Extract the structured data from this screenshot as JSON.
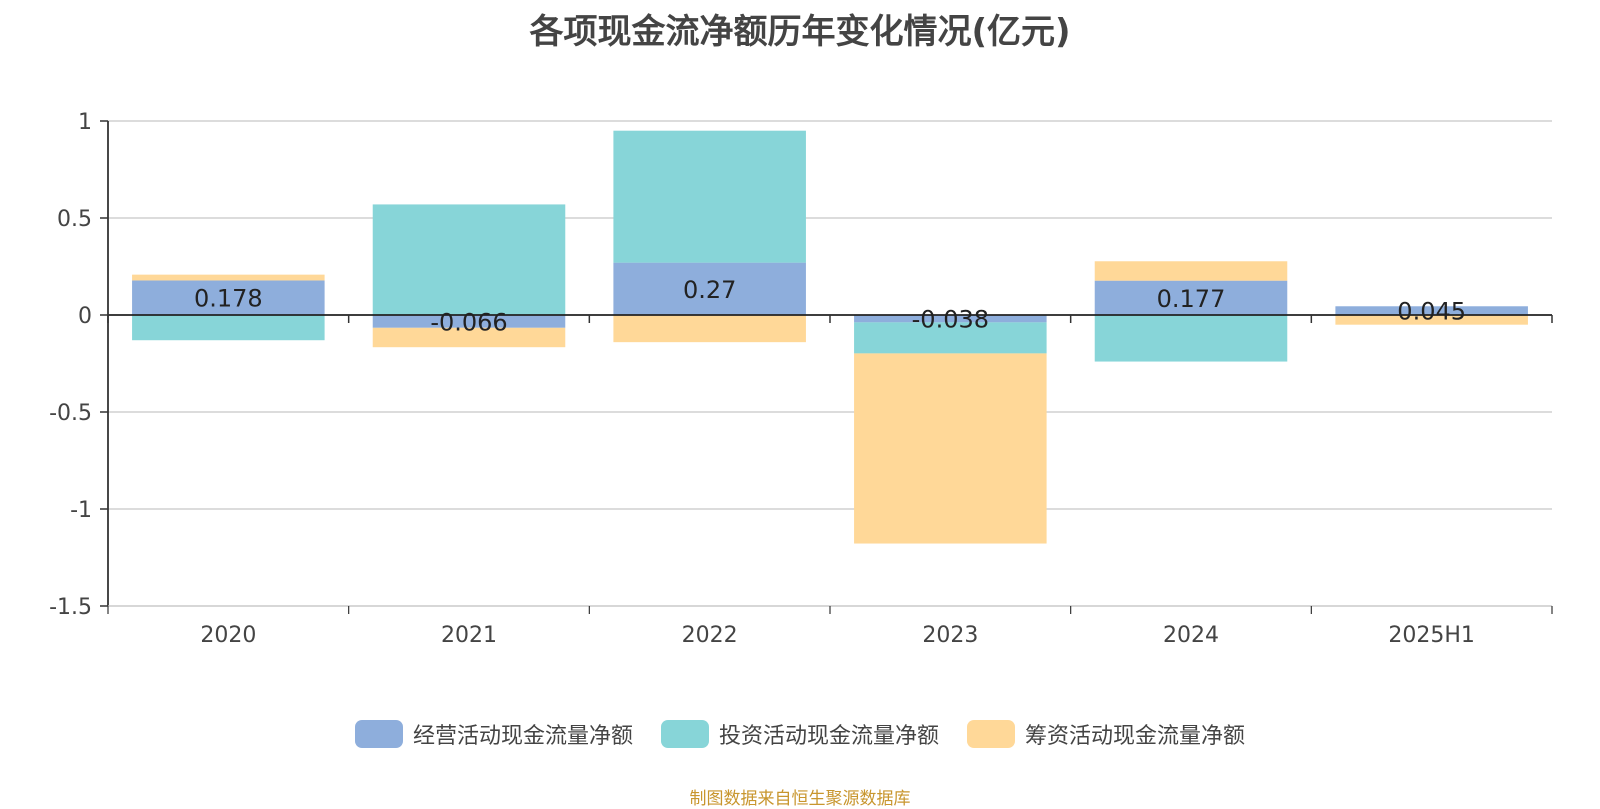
{
  "chart_data": {
    "type": "bar",
    "stacked": true,
    "title": "各项现金流净额历年变化情况(亿元)",
    "categories": [
      "2020",
      "2021",
      "2022",
      "2023",
      "2024",
      "2025H1"
    ],
    "y_ticks": [
      "1",
      "0.5",
      "0",
      "-0.5",
      "-1",
      "-1.5"
    ],
    "ylim": [
      -1.5,
      1
    ],
    "grid": true,
    "legend_position": "bottom-center",
    "series": [
      {
        "name": "经营活动现金流量净额",
        "color": "#8eaedc",
        "values": [
          0.178,
          -0.066,
          0.27,
          -0.038,
          0.177,
          0.045
        ]
      },
      {
        "name": "投资活动现金流量净额",
        "color": "#87d5d8",
        "values": [
          -0.13,
          0.57,
          0.68,
          -0.16,
          -0.24,
          0.0
        ]
      },
      {
        "name": "筹资活动现金流量净额",
        "color": "#ffd898",
        "values": [
          0.03,
          -0.1,
          -0.14,
          -0.98,
          0.1,
          -0.05
        ]
      }
    ],
    "data_labels": [
      "0.178",
      "-0.066",
      "0.27",
      "-0.038",
      "0.177",
      "0.045"
    ]
  },
  "source": "制图数据来自恒生聚源数据库"
}
